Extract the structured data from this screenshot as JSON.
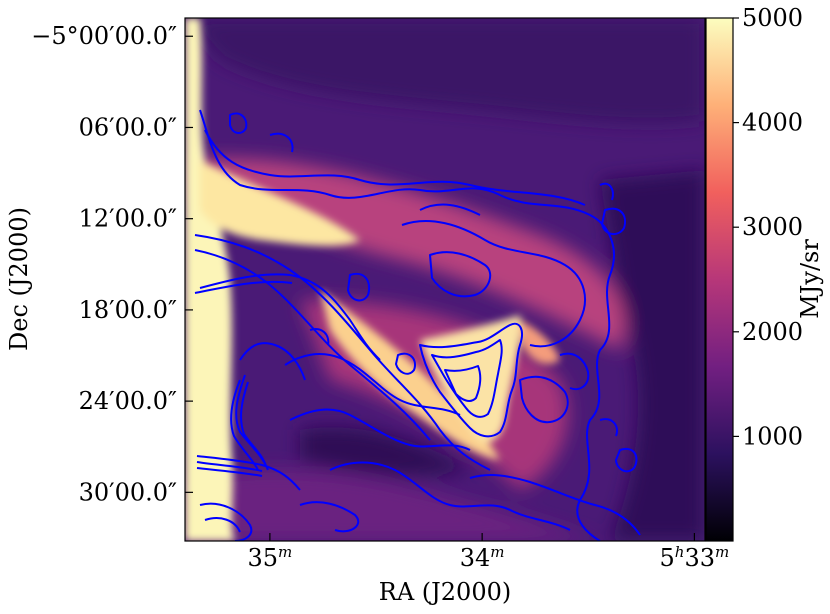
{
  "chart_data": {
    "type": "heatmap",
    "title": "",
    "xlabel": "RA (J2000)",
    "ylabel": "Dec (J2000)",
    "colorbar_label": "MJy/sr",
    "x_ticks": [
      {
        "main": "35",
        "sup": "m",
        "ra_min": 35
      },
      {
        "main": "34",
        "sup": "m",
        "ra_min": 34
      },
      {
        "main": "5",
        "sup": "h",
        "main2": "33",
        "sup2": "m",
        "ra_min": 33
      }
    ],
    "y_ticks": [
      {
        "label": "−5°00′00.0″",
        "dec_arcmin": 0
      },
      {
        "label": "06′00.0″",
        "dec_arcmin": 6
      },
      {
        "label": "12′00.0″",
        "dec_arcmin": 12
      },
      {
        "label": "18′00.0″",
        "dec_arcmin": 18
      },
      {
        "label": "24′00.0″",
        "dec_arcmin": 24
      },
      {
        "label": "30′00.0″",
        "dec_arcmin": 30
      }
    ],
    "ra_range_min": [
      35.4,
      32.95
    ],
    "dec_range_arcmin": [
      -1.2,
      33.2
    ],
    "colorbar": {
      "min": 0,
      "max": 5000,
      "ticks": [
        {
          "label": "1000",
          "value": 1000
        },
        {
          "label": "2000",
          "value": 2000
        },
        {
          "label": "3000",
          "value": 3000
        },
        {
          "label": "4000",
          "value": 4000
        },
        {
          "label": "5000",
          "value": 5000
        }
      ],
      "colormap": "magma",
      "stops": [
        "#000004",
        "#2c115f",
        "#721f81",
        "#b73779",
        "#f1605d",
        "#feb078",
        "#fcfdbf"
      ]
    },
    "contour_color": "#0000ff",
    "grid": false
  }
}
